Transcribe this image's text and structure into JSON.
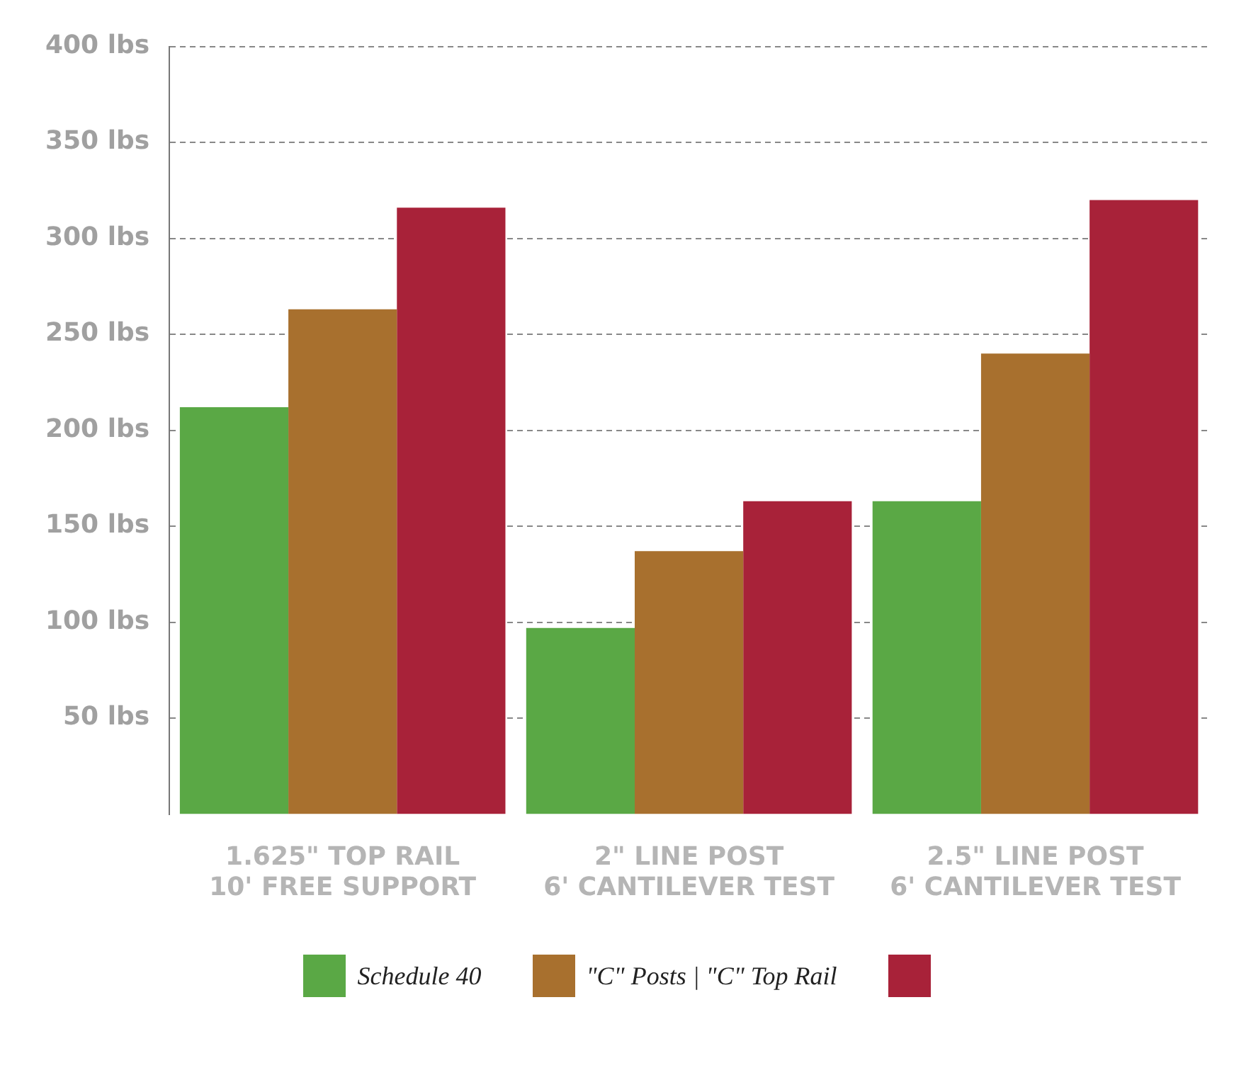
{
  "chart_data": {
    "type": "bar",
    "categories": [
      "1.625\" TOP RAIL\n10' FREE SUPPORT",
      "2\" LINE POST\n6' CANTILEVER TEST",
      "2.5\" LINE POST\n6' CANTILEVER TEST"
    ],
    "series": [
      {
        "name": "Schedule 40",
        "color": "#5aa845",
        "values": [
          212,
          97,
          163
        ]
      },
      {
        "name": "\"C\" Posts | \"C\" Top Rail",
        "color": "#a8702e",
        "values": [
          263,
          137,
          240
        ]
      },
      {
        "color": "#a82239",
        "values": [
          316,
          163,
          320
        ]
      }
    ],
    "ylim": [
      0,
      400
    ],
    "yticks": [
      {
        "value": 50,
        "label": "50 lbs"
      },
      {
        "value": 100,
        "label": "100 lbs"
      },
      {
        "value": 150,
        "label": "150 lbs"
      },
      {
        "value": 200,
        "label": "200 lbs"
      },
      {
        "value": 250,
        "label": "250 lbs"
      },
      {
        "value": 300,
        "label": "300 lbs"
      },
      {
        "value": 350,
        "label": "350 lbs"
      },
      {
        "value": 400,
        "label": "400 lbs"
      }
    ],
    "grid": "y",
    "legend": "bottom"
  }
}
